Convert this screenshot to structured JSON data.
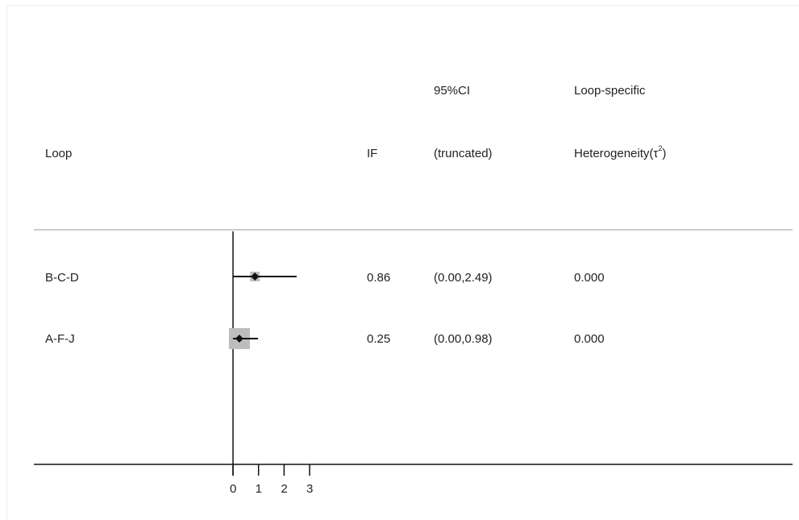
{
  "chart_data": {
    "type": "forest",
    "columns": {
      "loop": "Loop",
      "if": "IF",
      "ci_line1": "95%CI",
      "ci_line2": "(truncated)",
      "het_line1": "Loop-specific",
      "het_line2_prefix": "Heterogeneity(τ",
      "het_line2_sup": "2",
      "het_line2_suffix": ")"
    },
    "rows": [
      {
        "loop": "B-C-D",
        "if": 0.86,
        "ci_low": 0.0,
        "ci_high": 2.49,
        "if_text": "0.86",
        "ci_text": "(0.00,2.49)",
        "heterogeneity": "0.000"
      },
      {
        "loop": "A-F-J",
        "if": 0.25,
        "ci_low": 0.0,
        "ci_high": 0.98,
        "if_text": "0.25",
        "ci_text": "(0.00,0.98)",
        "heterogeneity": "0.000"
      }
    ],
    "x_ticks": [
      0,
      1,
      2,
      3
    ],
    "xlim": [
      0,
      3
    ],
    "grid": false
  }
}
